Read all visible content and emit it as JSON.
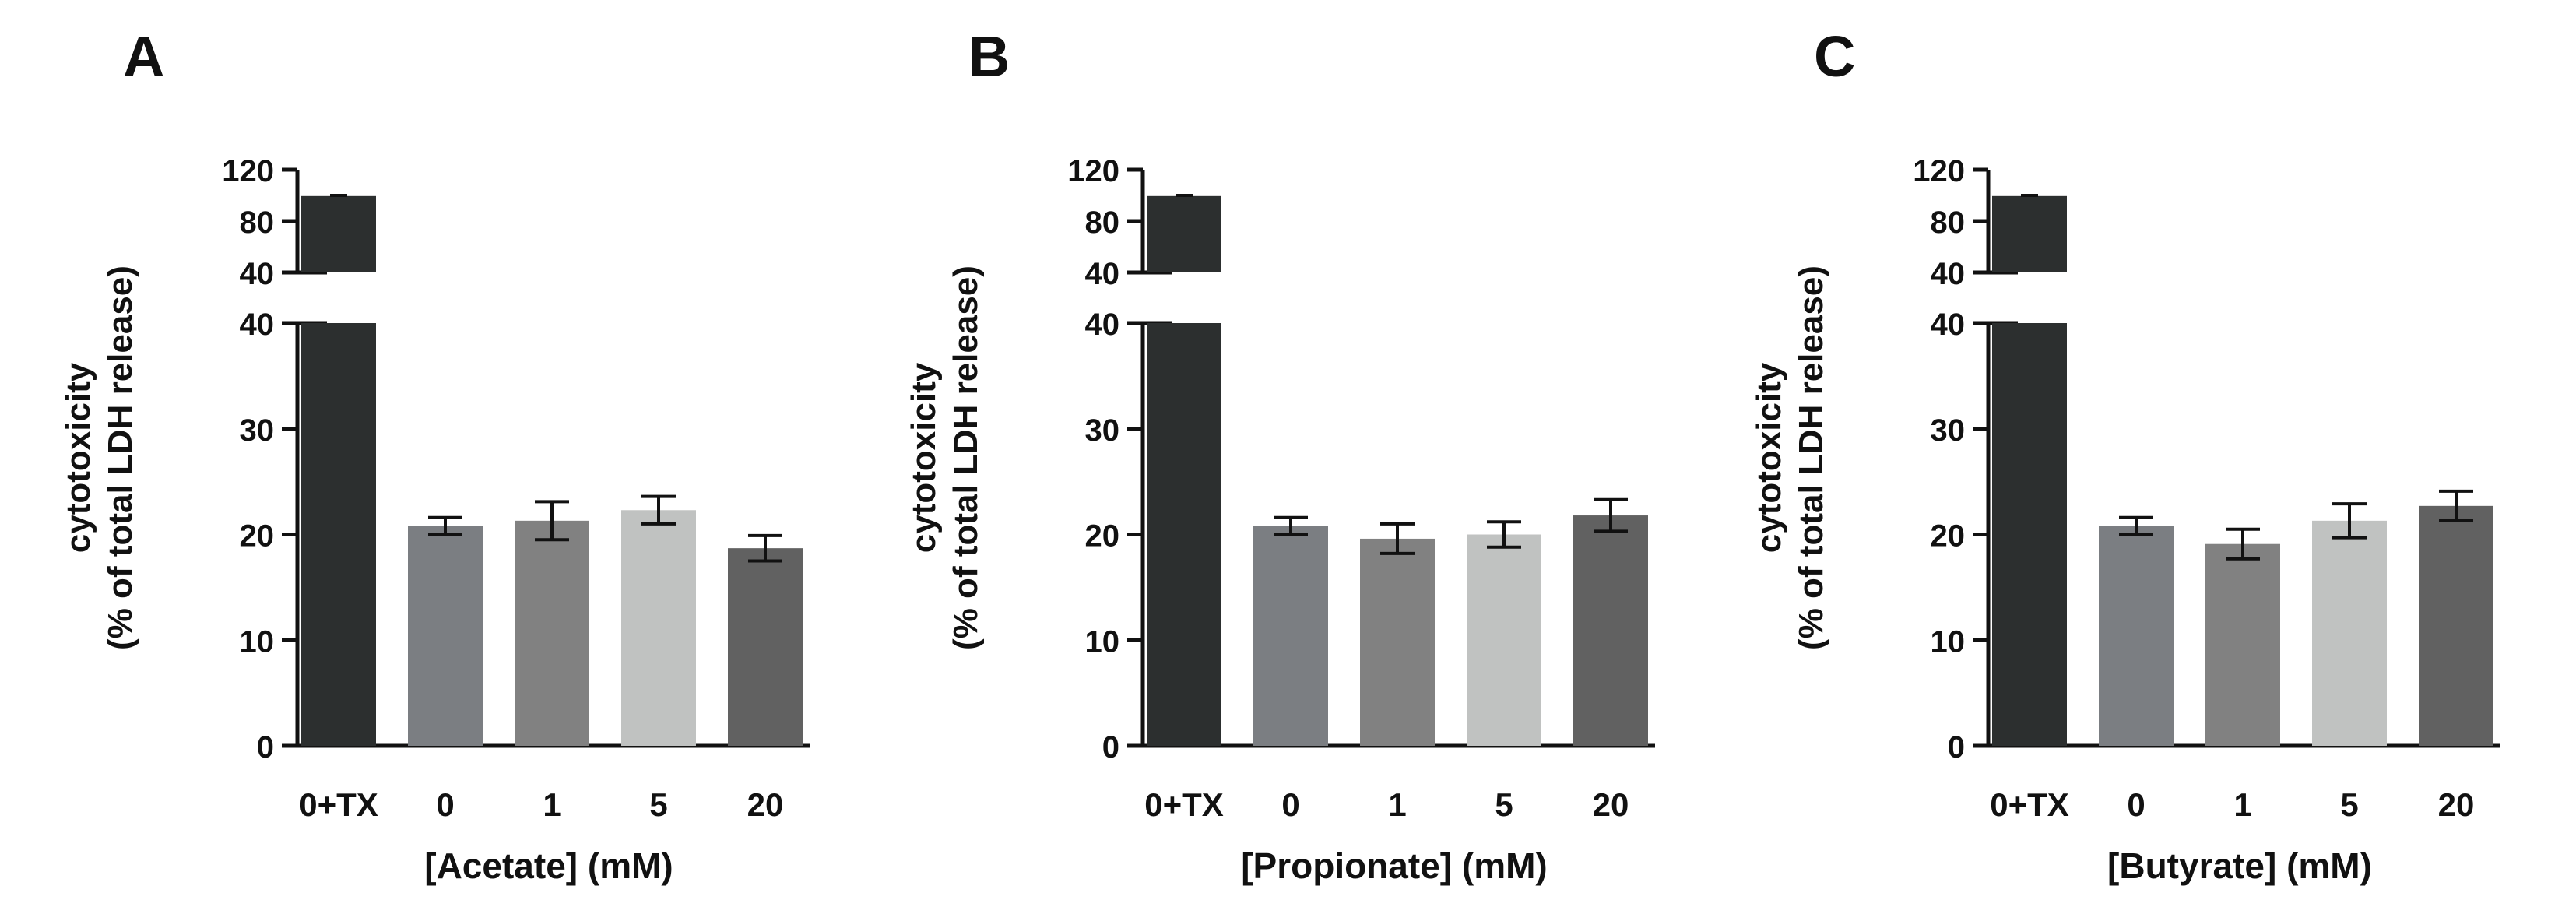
{
  "figure": {
    "shared": {
      "ylabel_line1": "cytotoxicity",
      "ylabel_line2": "(% of total LDH release)",
      "upper_ticks": [
        "120",
        "80",
        "40"
      ],
      "lower_ticks": [
        "40",
        "30",
        "20",
        "10",
        "0"
      ]
    }
  },
  "chart_data": [
    {
      "type": "bar",
      "panel_label": "A",
      "xlabel": "[Acetate] (mM)",
      "ylabel": "cytotoxicity (% of total LDH release)",
      "categories": [
        "0+TX",
        "0",
        "1",
        "5",
        "20"
      ],
      "values": [
        99.5,
        20.8,
        21.3,
        22.3,
        18.7
      ],
      "errors": [
        0.5,
        0.8,
        1.8,
        1.3,
        1.2
      ],
      "colors": [
        "#2c2f2f",
        "#7b7e82",
        "#818181",
        "#c0c2c1",
        "#616161"
      ],
      "y_axis_broken": true,
      "ylim_lower": [
        0,
        40
      ],
      "ylim_upper": [
        40,
        120
      ]
    },
    {
      "type": "bar",
      "panel_label": "B",
      "xlabel": "[Propionate] (mM)",
      "ylabel": "cytotoxicity (% of total LDH release)",
      "categories": [
        "0+TX",
        "0",
        "1",
        "5",
        "20"
      ],
      "values": [
        99.5,
        20.8,
        19.6,
        20.0,
        21.8
      ],
      "errors": [
        0.5,
        0.8,
        1.4,
        1.2,
        1.5
      ],
      "colors": [
        "#2c2f2f",
        "#7b7e82",
        "#818181",
        "#c0c2c1",
        "#616161"
      ],
      "y_axis_broken": true,
      "ylim_lower": [
        0,
        40
      ],
      "ylim_upper": [
        40,
        120
      ]
    },
    {
      "type": "bar",
      "panel_label": "C",
      "xlabel": "[Butyrate] (mM)",
      "ylabel": "cytotoxicity (% of total LDH release)",
      "categories": [
        "0+TX",
        "0",
        "1",
        "5",
        "20"
      ],
      "values": [
        99.5,
        20.8,
        19.1,
        21.3,
        22.7
      ],
      "errors": [
        0.5,
        0.8,
        1.4,
        1.6,
        1.4
      ],
      "colors": [
        "#2c2f2f",
        "#7b7e82",
        "#818181",
        "#c0c2c1",
        "#616161"
      ],
      "y_axis_broken": true,
      "ylim_lower": [
        0,
        40
      ],
      "ylim_upper": [
        40,
        120
      ]
    }
  ]
}
